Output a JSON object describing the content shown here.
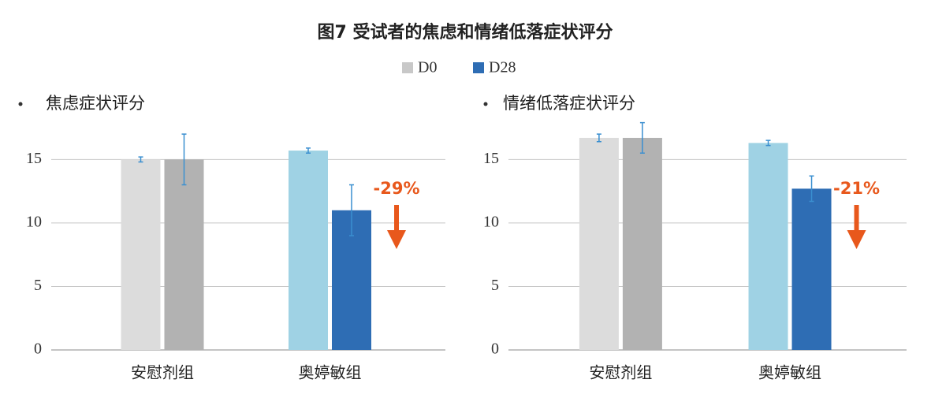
{
  "title": "图7 受试者的焦虑和情绪低落症状评分",
  "chart_data": [
    {
      "type": "bar",
      "title": "焦虑症状评分",
      "categories": [
        "安慰剂组",
        "奥婷敏组"
      ],
      "series": [
        {
          "name": "D0",
          "color": "#c8c8c8",
          "bar_colors": [
            "#dcdcdc",
            "#9fd2e4"
          ],
          "values": [
            15.0,
            15.7
          ],
          "errors": [
            0.2,
            0.2
          ]
        },
        {
          "name": "D28",
          "color": "#2e6db4",
          "bar_colors": [
            "#b2b2b2",
            "#2e6db4"
          ],
          "values": [
            15.0,
            11.0
          ],
          "errors": [
            2.0,
            2.0
          ]
        }
      ],
      "ylim": [
        0,
        18
      ],
      "yticks": [
        0,
        5,
        10,
        15
      ],
      "grid": true,
      "annotation": {
        "text": "-29%",
        "color": "#e8581c"
      }
    },
    {
      "type": "bar",
      "title": "情绪低落症状评分",
      "categories": [
        "安慰剂组",
        "奥婷敏组"
      ],
      "series": [
        {
          "name": "D0",
          "color": "#c8c8c8",
          "bar_colors": [
            "#dcdcdc",
            "#9fd2e4"
          ],
          "values": [
            16.7,
            16.3
          ],
          "errors": [
            0.3,
            0.2
          ]
        },
        {
          "name": "D28",
          "color": "#2e6db4",
          "bar_colors": [
            "#b2b2b2",
            "#2e6db4"
          ],
          "values": [
            16.7,
            12.7
          ],
          "errors": [
            1.2,
            1.0
          ]
        }
      ],
      "ylim": [
        0,
        18
      ],
      "yticks": [
        0,
        5,
        10,
        15
      ],
      "grid": true,
      "annotation": {
        "text": "-21%",
        "color": "#e8581c"
      }
    }
  ]
}
